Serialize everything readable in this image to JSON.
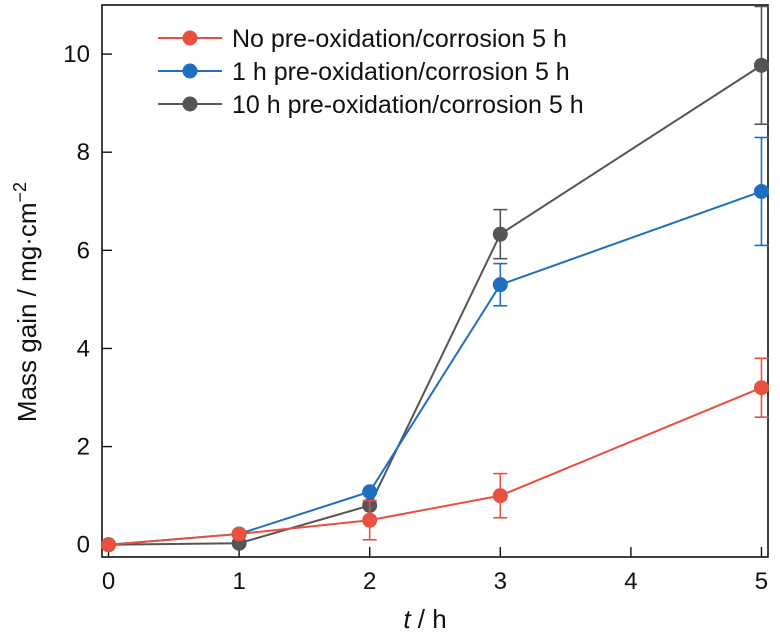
{
  "chart_data": {
    "type": "line",
    "title": "",
    "xlabel_italic": "t",
    "xlabel_rest": " / h",
    "ylabel_main": "Mass gain / mg·cm",
    "ylabel_sup": "−2",
    "xlim": [
      -0.05,
      5.05
    ],
    "ylim": [
      -0.25,
      11.0
    ],
    "x_ticks": [
      0,
      1,
      2,
      3,
      4,
      5
    ],
    "y_ticks": [
      0,
      2,
      4,
      6,
      8,
      10
    ],
    "legend_position": "top-left",
    "grid": false,
    "x": [
      0,
      1,
      2,
      3,
      5
    ],
    "series": [
      {
        "name": "No pre-oxidation/corrosion 5 h",
        "color": "#e8503f",
        "values": [
          0,
          0.22,
          0.5,
          1.0,
          3.2
        ],
        "errors": [
          0,
          0,
          0.4,
          0.45,
          0.6
        ]
      },
      {
        "name": "1 h pre-oxidation/corrosion 5 h",
        "color": "#1f6fc0",
        "values": [
          0,
          0.22,
          1.08,
          5.3,
          7.2
        ],
        "errors": [
          0,
          0,
          0,
          0.43,
          1.1
        ]
      },
      {
        "name": "10 h pre-oxidation/corrosion 5 h",
        "color": "#555555",
        "values": [
          0,
          0.03,
          0.8,
          6.33,
          9.77
        ],
        "errors": [
          0,
          0,
          0,
          0.5,
          1.2
        ]
      }
    ]
  }
}
